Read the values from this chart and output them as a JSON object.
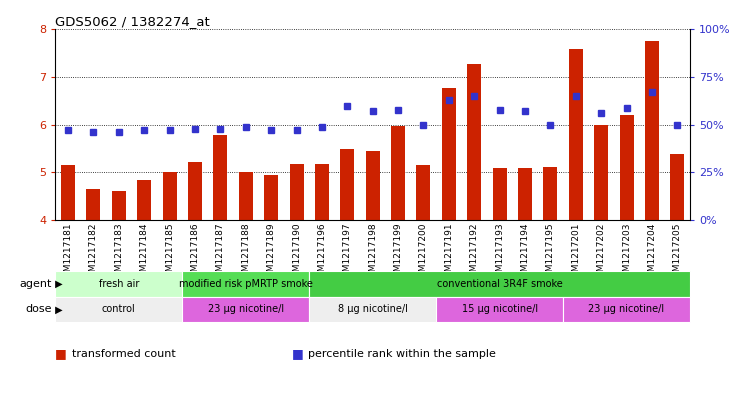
{
  "title": "GDS5062 / 1382274_at",
  "samples": [
    "GSM1217181",
    "GSM1217182",
    "GSM1217183",
    "GSM1217184",
    "GSM1217185",
    "GSM1217186",
    "GSM1217187",
    "GSM1217188",
    "GSM1217189",
    "GSM1217190",
    "GSM1217196",
    "GSM1217197",
    "GSM1217198",
    "GSM1217199",
    "GSM1217200",
    "GSM1217191",
    "GSM1217192",
    "GSM1217193",
    "GSM1217194",
    "GSM1217195",
    "GSM1217201",
    "GSM1217202",
    "GSM1217203",
    "GSM1217204",
    "GSM1217205"
  ],
  "bar_values": [
    5.15,
    4.65,
    4.6,
    4.85,
    5.0,
    5.22,
    5.78,
    5.0,
    4.95,
    5.18,
    5.18,
    5.5,
    5.45,
    5.98,
    5.15,
    6.78,
    7.28,
    5.1,
    5.1,
    5.12,
    7.58,
    6.0,
    6.2,
    7.75,
    5.38
  ],
  "dot_values": [
    47,
    46,
    46,
    47,
    47,
    48,
    48,
    49,
    47,
    47,
    49,
    60,
    57,
    58,
    50,
    63,
    65,
    58,
    57,
    50,
    65,
    56,
    59,
    67,
    50
  ],
  "ylim_left": [
    4,
    8
  ],
  "ylim_right": [
    0,
    100
  ],
  "yticks_left": [
    4,
    5,
    6,
    7,
    8
  ],
  "yticks_right": [
    0,
    25,
    50,
    75,
    100
  ],
  "bar_color": "#cc2200",
  "dot_color": "#3333cc",
  "agent_groups": [
    {
      "label": "fresh air",
      "start": 0,
      "end": 4,
      "color": "#ccffcc"
    },
    {
      "label": "modified risk pMRTP smoke",
      "start": 5,
      "end": 9,
      "color": "#55dd55"
    },
    {
      "label": "conventional 3R4F smoke",
      "start": 10,
      "end": 24,
      "color": "#44cc44"
    }
  ],
  "dose_groups": [
    {
      "label": "control",
      "start": 0,
      "end": 4,
      "color": "#eeeeee"
    },
    {
      "label": "23 μg nicotine/l",
      "start": 5,
      "end": 9,
      "color": "#dd66dd"
    },
    {
      "label": "8 μg nicotine/l",
      "start": 10,
      "end": 14,
      "color": "#eeeeee"
    },
    {
      "label": "15 μg nicotine/l",
      "start": 15,
      "end": 19,
      "color": "#dd66dd"
    },
    {
      "label": "23 μg nicotine/l",
      "start": 20,
      "end": 24,
      "color": "#dd66dd"
    }
  ],
  "legend_items": [
    {
      "label": "transformed count",
      "color": "#cc2200"
    },
    {
      "label": "percentile rank within the sample",
      "color": "#3333cc"
    }
  ],
  "xtick_bg_color": "#dddddd"
}
